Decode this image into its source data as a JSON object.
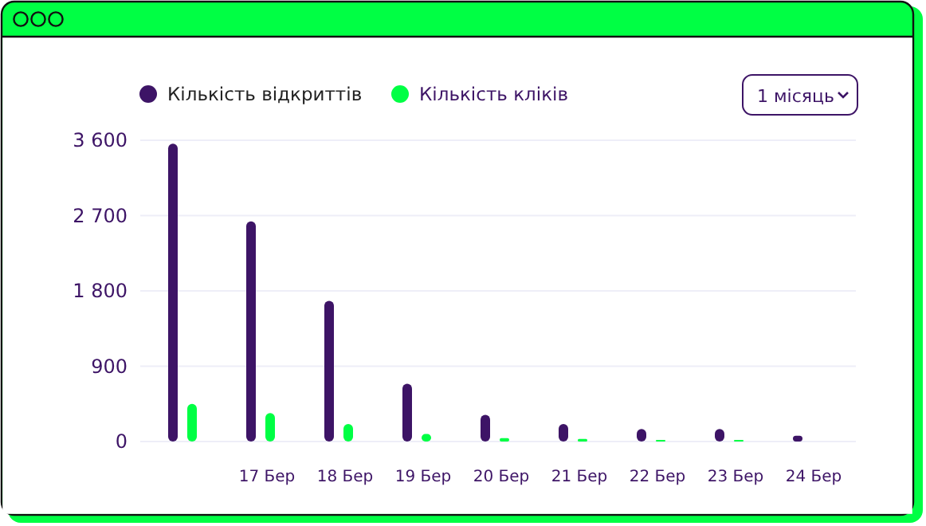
{
  "chart_data": {
    "type": "bar",
    "categories": [
      null,
      "17 Бер",
      "18 Бер",
      "19 Бер",
      "20 Бер",
      "21 Бер",
      "22 Бер",
      "23 Бер",
      "24 Бер"
    ],
    "series": [
      {
        "name": "Кількість відкриттів",
        "color": "#3d1466",
        "values": [
          3560,
          2630,
          1680,
          690,
          320,
          210,
          150,
          150,
          70
        ]
      },
      {
        "name": "Кількість кліків",
        "color": "#00ff44",
        "values": [
          450,
          340,
          210,
          90,
          40,
          30,
          20,
          20,
          0
        ]
      }
    ],
    "ylim": [
      0,
      3600
    ],
    "yticks": [
      0,
      {
        "value": 900,
        "label": "900"
      },
      {
        "value": 1800,
        "label": "1 800"
      },
      {
        "value": 2700,
        "label": "2 700"
      },
      {
        "value": 3600,
        "label": "3 600"
      }
    ],
    "grid": "y",
    "legend": "top left",
    "annotations": [
      "1 місяць"
    ]
  }
}
